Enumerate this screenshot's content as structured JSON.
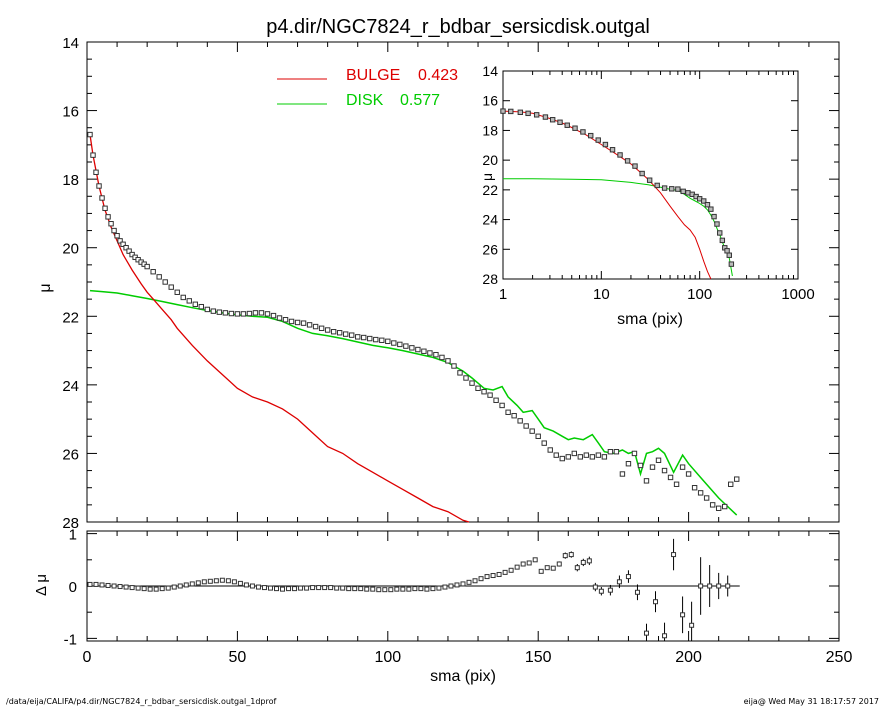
{
  "title": "p4.dir/NGC7824_r_bdbar_sersicdisk.outgal",
  "footer_left": "/data/eija/CALIFA/p4.dir/NGC7824_r_bdbar_sersicdisk.outgal_1dprof",
  "footer_right": "eija@  Wed May 31 18:17:57 2017",
  "colors": {
    "bulge": "#dd0000",
    "disk": "#00cc00",
    "axes": "#000000"
  },
  "chart_data": [
    {
      "type": "line",
      "panel": "main",
      "xlabel": "sma (pix)",
      "ylabel": "μ",
      "xlim": [
        0,
        250
      ],
      "ylim": [
        28,
        14
      ],
      "xticks": [
        0,
        50,
        100,
        150,
        200,
        250
      ],
      "yticks": [
        14,
        16,
        18,
        20,
        22,
        24,
        26,
        28
      ],
      "legend": [
        {
          "label": "BULGE",
          "value": "0.423",
          "color": "#dd0000"
        },
        {
          "label": "DISK",
          "value": "0.577",
          "color": "#00cc00"
        }
      ],
      "series": [
        {
          "name": "data",
          "style": "squares",
          "x": [
            1,
            2,
            3,
            4,
            5,
            6,
            7,
            8,
            9,
            10,
            11,
            12,
            13,
            14,
            15,
            16,
            17,
            18,
            19,
            20,
            22,
            24,
            26,
            28,
            30,
            32,
            34,
            36,
            38,
            40,
            42,
            44,
            46,
            48,
            50,
            52,
            54,
            56,
            58,
            60,
            62,
            64,
            66,
            68,
            70,
            72,
            74,
            76,
            78,
            80,
            82,
            84,
            86,
            88,
            90,
            92,
            94,
            96,
            98,
            100,
            102,
            104,
            106,
            108,
            110,
            112,
            114,
            116,
            118,
            120,
            122,
            124,
            126,
            128,
            130,
            132,
            134,
            136,
            138,
            140,
            142,
            144,
            146,
            148,
            150,
            152,
            154,
            156,
            158,
            160,
            162,
            164,
            166,
            168,
            170,
            172,
            174,
            176,
            178,
            180,
            182,
            184,
            186,
            188,
            190,
            192,
            194,
            196,
            198,
            200,
            202,
            204,
            206,
            208,
            210,
            212,
            214,
            216
          ],
          "y": [
            16.7,
            17.3,
            17.8,
            18.2,
            18.55,
            18.85,
            19.1,
            19.3,
            19.5,
            19.65,
            19.8,
            19.9,
            20.0,
            20.1,
            20.2,
            20.28,
            20.35,
            20.42,
            20.48,
            20.55,
            20.7,
            20.85,
            21.0,
            21.15,
            21.3,
            21.45,
            21.55,
            21.65,
            21.72,
            21.8,
            21.85,
            21.88,
            21.9,
            21.92,
            21.93,
            21.93,
            21.92,
            21.9,
            21.9,
            21.93,
            21.98,
            22.05,
            22.1,
            22.15,
            22.18,
            22.2,
            22.25,
            22.3,
            22.35,
            22.4,
            22.45,
            22.48,
            22.52,
            22.55,
            22.6,
            22.62,
            22.65,
            22.68,
            22.7,
            22.73,
            22.78,
            22.82,
            22.87,
            22.92,
            22.97,
            23.02,
            23.07,
            23.12,
            23.2,
            23.3,
            23.45,
            23.65,
            23.8,
            23.95,
            24.1,
            24.2,
            24.3,
            24.45,
            24.6,
            24.8,
            24.9,
            25.05,
            25.2,
            25.35,
            25.5,
            25.7,
            25.9,
            26.05,
            26.15,
            26.1,
            26.0,
            26.1,
            26.05,
            26.1,
            26.05,
            26.1,
            25.95,
            25.95,
            26.6,
            26.3,
            26.0,
            26.35,
            26.8,
            26.4,
            26.2,
            26.5,
            26.7,
            26.9,
            26.4,
            26.6,
            27.0,
            27.15,
            27.3,
            27.5,
            27.6,
            27.55,
            26.9,
            26.75
          ],
          "note_strategy": "subset"
        },
        {
          "name": "bulge",
          "style": "line",
          "color": "#dd0000",
          "x": [
            1,
            2,
            4,
            6,
            8,
            10,
            12,
            15,
            18,
            20,
            22,
            25,
            28,
            30,
            35,
            40,
            45,
            50,
            55,
            60,
            65,
            70,
            75,
            80,
            85,
            90,
            95,
            100,
            105,
            110,
            115,
            120,
            125,
            127
          ],
          "y": [
            16.7,
            17.3,
            18.2,
            18.9,
            19.4,
            19.8,
            20.2,
            20.65,
            21.05,
            21.3,
            21.5,
            21.8,
            22.1,
            22.35,
            22.85,
            23.3,
            23.7,
            24.1,
            24.35,
            24.5,
            24.7,
            25.0,
            25.4,
            25.8,
            26.0,
            26.3,
            26.55,
            26.8,
            27.05,
            27.3,
            27.55,
            27.7,
            27.95,
            28.0
          ]
        },
        {
          "name": "disk",
          "style": "line",
          "color": "#00cc00",
          "x": [
            1,
            5,
            10,
            15,
            20,
            25,
            30,
            35,
            40,
            45,
            50,
            55,
            60,
            65,
            70,
            75,
            80,
            85,
            90,
            95,
            100,
            105,
            110,
            115,
            120,
            122,
            125,
            128,
            130,
            132,
            135,
            138,
            140,
            143,
            145,
            148,
            150,
            152,
            155,
            158,
            160,
            162,
            165,
            168,
            170,
            172,
            175,
            178,
            180,
            182,
            184,
            186,
            188,
            190,
            192,
            195,
            198,
            200,
            205,
            210,
            216
          ],
          "y": [
            21.25,
            21.28,
            21.32,
            21.4,
            21.48,
            21.57,
            21.66,
            21.75,
            21.83,
            21.9,
            21.96,
            22.0,
            22.03,
            22.15,
            22.35,
            22.5,
            22.57,
            22.65,
            22.75,
            22.85,
            22.92,
            23.0,
            23.1,
            23.2,
            23.35,
            23.45,
            23.6,
            23.8,
            23.95,
            24.1,
            24.15,
            24.05,
            24.35,
            24.6,
            24.8,
            24.75,
            25.0,
            25.25,
            25.35,
            25.5,
            25.6,
            25.55,
            25.6,
            25.45,
            25.7,
            25.95,
            26.0,
            25.9,
            26.0,
            25.95,
            26.6,
            26.0,
            25.95,
            25.85,
            26.0,
            26.55,
            26.05,
            26.3,
            26.8,
            27.3,
            27.8
          ]
        }
      ]
    },
    {
      "type": "scatter",
      "panel": "residual",
      "xlabel": "sma (pix)",
      "ylabel": "Δ μ",
      "xlim": [
        0,
        250
      ],
      "ylim": [
        -1.05,
        1.05
      ],
      "xticks": [
        0,
        50,
        100,
        150,
        200,
        250
      ],
      "yticks": [
        1,
        0,
        -1
      ],
      "zero_line_xlim": [
        0,
        217
      ],
      "x": [
        1,
        3,
        5,
        7,
        9,
        11,
        13,
        15,
        17,
        19,
        21,
        23,
        25,
        27,
        29,
        31,
        33,
        35,
        37,
        39,
        41,
        43,
        45,
        47,
        49,
        51,
        53,
        55,
        57,
        59,
        61,
        63,
        65,
        67,
        69,
        71,
        73,
        75,
        77,
        79,
        81,
        83,
        85,
        87,
        89,
        91,
        93,
        95,
        97,
        99,
        101,
        103,
        105,
        107,
        109,
        111,
        113,
        115,
        117,
        119,
        121,
        123,
        125,
        127,
        129,
        131,
        133,
        135,
        137,
        139,
        141,
        143,
        145,
        147,
        149,
        151,
        153,
        155,
        157,
        159,
        161,
        163,
        165,
        167,
        169,
        171,
        174,
        177,
        180,
        183,
        186,
        189,
        192,
        195,
        198,
        201,
        204,
        207,
        210,
        213
      ],
      "y": [
        0.03,
        0.03,
        0.02,
        0.01,
        0.0,
        -0.01,
        -0.02,
        -0.03,
        -0.04,
        -0.05,
        -0.06,
        -0.06,
        -0.05,
        -0.04,
        -0.02,
        0.0,
        0.02,
        0.04,
        0.06,
        0.08,
        0.09,
        0.1,
        0.11,
        0.1,
        0.08,
        0.05,
        0.02,
        0.0,
        -0.02,
        -0.03,
        -0.04,
        -0.05,
        -0.06,
        -0.05,
        -0.05,
        -0.04,
        -0.04,
        -0.03,
        -0.03,
        -0.03,
        -0.03,
        -0.04,
        -0.04,
        -0.05,
        -0.05,
        -0.05,
        -0.06,
        -0.06,
        -0.07,
        -0.07,
        -0.07,
        -0.06,
        -0.06,
        -0.06,
        -0.05,
        -0.05,
        -0.06,
        -0.05,
        -0.04,
        -0.02,
        0.0,
        0.02,
        0.04,
        0.07,
        0.1,
        0.14,
        0.18,
        0.2,
        0.22,
        0.26,
        0.3,
        0.36,
        0.42,
        0.44,
        0.5,
        0.28,
        0.35,
        0.34,
        0.42,
        0.58,
        0.6,
        0.35,
        0.45,
        0.48,
        -0.02,
        -0.1,
        -0.08,
        0.08,
        0.18,
        -0.12,
        -0.9,
        -0.3,
        -0.95,
        0.6,
        -0.55,
        -0.75,
        0.0,
        0.0,
        0.0,
        0.0
      ],
      "err": [
        0.01,
        0.01,
        0.01,
        0.01,
        0.01,
        0.01,
        0.01,
        0.01,
        0.01,
        0.01,
        0.01,
        0.01,
        0.01,
        0.01,
        0.01,
        0.01,
        0.01,
        0.01,
        0.01,
        0.01,
        0.01,
        0.01,
        0.01,
        0.01,
        0.01,
        0.01,
        0.01,
        0.01,
        0.01,
        0.01,
        0.01,
        0.01,
        0.01,
        0.01,
        0.01,
        0.01,
        0.01,
        0.01,
        0.01,
        0.01,
        0.01,
        0.01,
        0.01,
        0.01,
        0.01,
        0.01,
        0.01,
        0.01,
        0.01,
        0.01,
        0.01,
        0.01,
        0.01,
        0.01,
        0.01,
        0.01,
        0.01,
        0.01,
        0.01,
        0.01,
        0.01,
        0.01,
        0.01,
        0.01,
        0.01,
        0.01,
        0.01,
        0.01,
        0.02,
        0.02,
        0.02,
        0.02,
        0.02,
        0.03,
        0.03,
        0.03,
        0.03,
        0.04,
        0.05,
        0.06,
        0.06,
        0.07,
        0.07,
        0.08,
        0.08,
        0.08,
        0.1,
        0.12,
        0.12,
        0.15,
        0.18,
        0.2,
        0.25,
        0.3,
        0.35,
        0.45,
        0.55,
        0.4,
        0.25,
        0.2
      ]
    },
    {
      "type": "line",
      "panel": "inset",
      "xlabel": "sma (pix)",
      "ylabel": "μ",
      "xscale": "log",
      "xlim": [
        1,
        1000
      ],
      "ylim": [
        28,
        14
      ],
      "xticks": [
        1,
        10,
        100,
        1000
      ],
      "yticks": [
        14,
        16,
        18,
        20,
        22,
        24,
        26,
        28
      ],
      "series": [
        {
          "name": "data",
          "style": "squares",
          "x": [
            1,
            1.2,
            1.5,
            1.8,
            2.2,
            2.7,
            3.2,
            3.8,
            4.5,
            5.4,
            6.5,
            7.8,
            9.3,
            11,
            13,
            15.5,
            18.5,
            22,
            26,
            31,
            37,
            44,
            52,
            60,
            68,
            76,
            84,
            92,
            100,
            110,
            120,
            130,
            140,
            150,
            160,
            170,
            180,
            190,
            200,
            210
          ],
          "y": [
            16.7,
            16.72,
            16.78,
            16.85,
            16.95,
            17.1,
            17.28,
            17.45,
            17.65,
            17.85,
            18.1,
            18.35,
            18.65,
            18.95,
            19.3,
            19.65,
            20.05,
            20.4,
            20.9,
            21.35,
            21.7,
            21.88,
            21.93,
            21.95,
            22.1,
            22.2,
            22.3,
            22.45,
            22.6,
            22.75,
            23.0,
            23.3,
            23.8,
            24.3,
            24.9,
            25.4,
            25.9,
            26.1,
            26.4,
            27.0
          ]
        },
        {
          "name": "bulge",
          "style": "line",
          "color": "#dd0000",
          "x": [
            1,
            1.5,
            2,
            3,
            4,
            5,
            7,
            10,
            15,
            20,
            30,
            40,
            50,
            60,
            70,
            80,
            90,
            100,
            110,
            120,
            130
          ],
          "y": [
            16.7,
            16.75,
            16.85,
            17.2,
            17.5,
            17.8,
            18.3,
            18.95,
            19.7,
            20.25,
            21.3,
            22.2,
            23.1,
            23.8,
            24.35,
            24.7,
            25.2,
            26.0,
            26.8,
            27.5,
            28.0
          ]
        },
        {
          "name": "disk",
          "style": "line",
          "color": "#00cc00",
          "x": [
            1,
            2,
            5,
            10,
            20,
            30,
            40,
            50,
            60,
            70,
            80,
            90,
            100,
            110,
            120,
            130,
            140,
            150,
            160,
            170,
            180,
            190,
            200,
            215
          ],
          "y": [
            21.25,
            21.25,
            21.28,
            21.32,
            21.5,
            21.66,
            21.83,
            21.96,
            22.03,
            22.3,
            22.57,
            22.75,
            22.92,
            23.1,
            23.35,
            23.7,
            24.1,
            24.6,
            25.0,
            25.5,
            25.9,
            26.2,
            26.6,
            27.8
          ]
        }
      ]
    }
  ]
}
